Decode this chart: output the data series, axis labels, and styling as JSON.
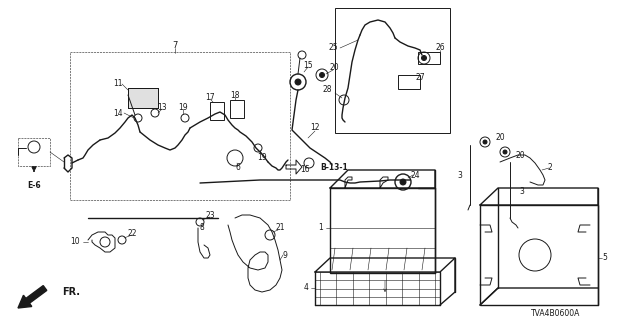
{
  "bg_color": "#ffffff",
  "line_color": "#1a1a1a",
  "diagram_code": "TVA4B0600A",
  "figsize": [
    6.4,
    3.2
  ],
  "dpi": 100
}
